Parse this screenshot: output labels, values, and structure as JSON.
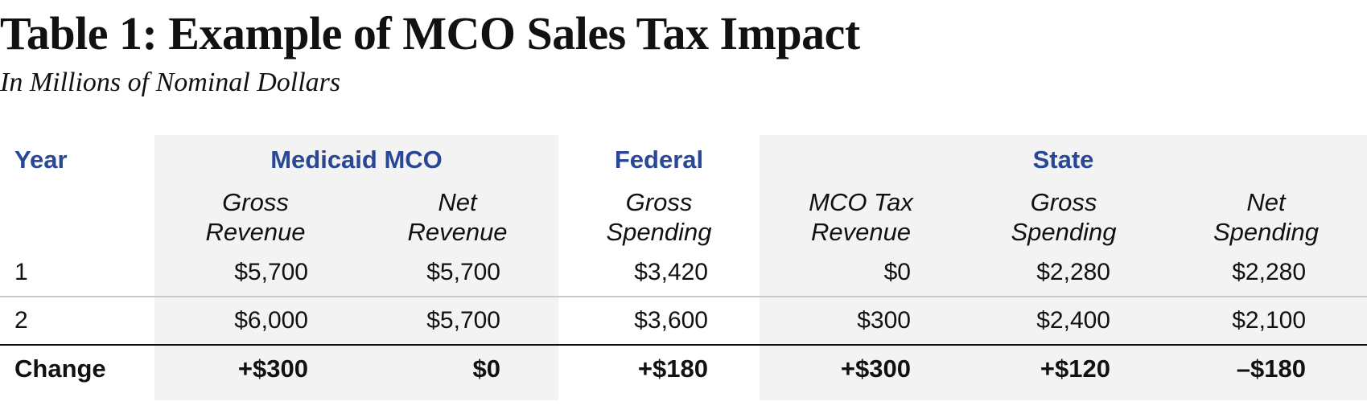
{
  "title": "Table 1: Example of MCO Sales Tax Impact",
  "subtitle": "In Millions of Nominal Dollars",
  "header": {
    "year": "Year",
    "groups": [
      "Medicaid MCO",
      "Federal",
      "State"
    ],
    "subheaders": [
      [
        "Gross",
        "Revenue"
      ],
      [
        "Net",
        "Revenue"
      ],
      [
        "Gross",
        "Spending"
      ],
      [
        "MCO Tax",
        "Revenue"
      ],
      [
        "Gross",
        "Spending"
      ],
      [
        "Net",
        "Spending"
      ]
    ]
  },
  "rows": [
    {
      "label": "1",
      "values": [
        "$5,700",
        "$5,700",
        "$3,420",
        "$0",
        "$2,280",
        "$2,280"
      ]
    },
    {
      "label": "2",
      "values": [
        "$6,000",
        "$5,700",
        "$3,600",
        "$300",
        "$2,400",
        "$2,100"
      ]
    },
    {
      "label": "Change",
      "values": [
        "+$300",
        "$0",
        "+$180",
        "+$300",
        "+$120",
        "–$180"
      ]
    }
  ],
  "colors": {
    "header_text": "#2a4796",
    "shade": "#f2f3f2",
    "text": "#111111"
  }
}
